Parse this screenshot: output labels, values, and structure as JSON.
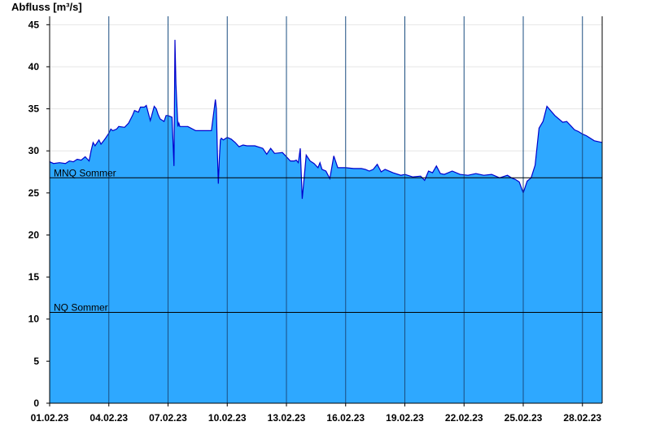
{
  "chart_data": {
    "type": "area",
    "ylabel": "Abfluss [m³/s]",
    "ylim": [
      0,
      46
    ],
    "yticks": [
      0,
      5,
      10,
      15,
      20,
      25,
      30,
      35,
      40,
      45
    ],
    "xlim": [
      0,
      28
    ],
    "x_tick_labels": [
      "01.02.23",
      "04.02.23",
      "07.02.23",
      "10.02.23",
      "13.02.23",
      "16.02.23",
      "19.02.23",
      "22.02.23",
      "25.02.23",
      "28.02.23"
    ],
    "x_tick_days": [
      0,
      3,
      6,
      9,
      12,
      15,
      18,
      21,
      24,
      27
    ],
    "grid": true,
    "colors": {
      "fill": "#2ea8ff",
      "line": "#0000cc",
      "grid": "#e6e6e6",
      "vline": "#1a4d80",
      "reference": "#000000"
    },
    "reference_lines": [
      {
        "label": "MNQ Sommer",
        "value": 26.8
      },
      {
        "label": "NQ Sommer",
        "value": 10.8
      }
    ],
    "series": [
      {
        "x": [
          0,
          0.2,
          0.5,
          0.8,
          1.0,
          1.2,
          1.4,
          1.6,
          1.8,
          2.0,
          2.1,
          2.2,
          2.3,
          2.5,
          2.6,
          2.8,
          3.0,
          3.1,
          3.2,
          3.4,
          3.5,
          3.8,
          4.0,
          4.2,
          4.3,
          4.5,
          4.6,
          4.8,
          4.9,
          5.1,
          5.3,
          5.4,
          5.5,
          5.6,
          5.8,
          5.9,
          6.0,
          6.2,
          6.3,
          6.35,
          6.4,
          6.5,
          6.55,
          6.6,
          6.7,
          6.8,
          7.0,
          7.4,
          7.8,
          8.2,
          8.4,
          8.45,
          8.5,
          8.55,
          8.6,
          8.65,
          8.7,
          8.8,
          9.0,
          9.2,
          9.4,
          9.6,
          9.8,
          10.0,
          10.4,
          10.8,
          11.0,
          11.2,
          11.4,
          11.8,
          12.0,
          12.2,
          12.4,
          12.5,
          12.6,
          12.7,
          12.8,
          13.0,
          13.2,
          13.4,
          13.6,
          13.7,
          13.8,
          14.0,
          14.2,
          14.4,
          14.6,
          15.0,
          15.4,
          15.8,
          16.0,
          16.2,
          16.4,
          16.6,
          16.8,
          17.0,
          17.4,
          17.8,
          18.0,
          18.4,
          18.8,
          19.0,
          19.2,
          19.4,
          19.6,
          19.8,
          20.0,
          20.4,
          20.8,
          21.2,
          21.6,
          22.0,
          22.4,
          22.8,
          23.2,
          23.4,
          23.6,
          23.8,
          24.0,
          24.2,
          24.4,
          24.6,
          24.8,
          25.0,
          25.2,
          25.6,
          26.0,
          26.2,
          26.4,
          26.6,
          26.8,
          27.0,
          27.2,
          27.6,
          28.0
        ],
        "values": [
          28.7,
          28.5,
          28.6,
          28.5,
          28.8,
          28.7,
          29.0,
          28.9,
          29.3,
          28.8,
          30.0,
          31.0,
          30.6,
          31.3,
          30.8,
          31.4,
          32.1,
          32.6,
          32.4,
          32.6,
          32.9,
          32.8,
          33.3,
          34.2,
          34.8,
          34.6,
          35.2,
          35.2,
          35.4,
          33.6,
          35.3,
          35.0,
          34.3,
          33.8,
          33.5,
          34.2,
          34.2,
          34.0,
          28.2,
          43.2,
          38.0,
          32.9,
          33.3,
          32.9,
          32.9,
          32.9,
          32.9,
          32.4,
          32.4,
          32.4,
          36.1,
          35.0,
          30.0,
          26.1,
          29.0,
          31.3,
          31.5,
          31.3,
          31.6,
          31.4,
          31.0,
          30.5,
          30.7,
          30.6,
          30.6,
          30.3,
          29.6,
          30.3,
          29.7,
          29.8,
          29.3,
          28.8,
          28.8,
          28.9,
          28.6,
          30.3,
          24.3,
          29.5,
          28.8,
          28.5,
          28.0,
          28.6,
          27.8,
          27.6,
          26.7,
          29.4,
          28.0,
          28.0,
          27.9,
          27.9,
          27.8,
          27.6,
          27.8,
          28.4,
          27.5,
          27.8,
          27.4,
          27.1,
          27.2,
          26.9,
          27.0,
          26.5,
          27.6,
          27.4,
          28.2,
          27.3,
          27.2,
          27.6,
          27.2,
          27.1,
          27.3,
          27.1,
          27.2,
          26.8,
          27.1,
          26.8,
          26.6,
          26.3,
          25.0,
          26.4,
          26.8,
          28.3,
          32.7,
          33.5,
          35.3,
          34.2,
          33.4,
          33.5,
          33.0,
          32.5,
          32.3,
          32.0,
          31.8,
          31.2,
          31.0
        ]
      }
    ]
  }
}
